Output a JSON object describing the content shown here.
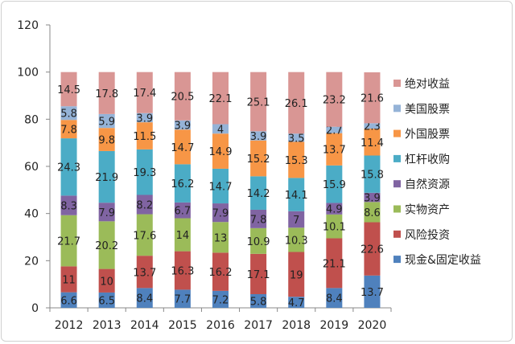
{
  "chart_data": {
    "type": "bar",
    "stacked": true,
    "title": "",
    "xlabel": "",
    "ylabel": "",
    "ylim": [
      0,
      120
    ],
    "yticks": [
      0,
      20,
      40,
      60,
      80,
      100,
      120
    ],
    "grid": false,
    "legend_position": "right",
    "categories": [
      "2012",
      "2013",
      "2014",
      "2015",
      "2016",
      "2017",
      "2018",
      "2019",
      "2020"
    ],
    "series": [
      {
        "name": "现金&固定收益",
        "color": "#4F81BD",
        "values": [
          6.6,
          6.5,
          8.4,
          7.7,
          7.2,
          5.8,
          4.7,
          8.4,
          13.7
        ]
      },
      {
        "name": "风险投资",
        "color": "#C0504D",
        "values": [
          11,
          10,
          13.7,
          16.3,
          16.2,
          17.1,
          19,
          21.1,
          22.6
        ]
      },
      {
        "name": "实物资产",
        "color": "#9BBB59",
        "values": [
          21.7,
          20.2,
          17.6,
          14,
          13,
          10.9,
          10.3,
          10.1,
          8.6
        ]
      },
      {
        "name": "自然资源",
        "color": "#8064A2",
        "values": [
          8.3,
          7.9,
          8.2,
          6.7,
          7.9,
          7.8,
          7,
          4.9,
          3.9
        ]
      },
      {
        "name": "杠杆收购",
        "color": "#4BACC6",
        "values": [
          24.3,
          21.9,
          19.3,
          16.2,
          14.7,
          14.2,
          14.1,
          15.9,
          15.8
        ]
      },
      {
        "name": "外国股票",
        "color": "#F79646",
        "values": [
          7.8,
          9.8,
          11.5,
          14.7,
          14.9,
          15.2,
          15.3,
          13.7,
          11.4
        ]
      },
      {
        "name": "美国股票",
        "color": "#95B3D7",
        "values": [
          5.8,
          5.9,
          3.9,
          3.9,
          4,
          3.9,
          3.5,
          2.7,
          2.3
        ]
      },
      {
        "name": "绝对收益",
        "color": "#D99694",
        "values": [
          14.5,
          17.8,
          17.4,
          20.5,
          22.1,
          25.1,
          26.1,
          23.2,
          21.6
        ]
      }
    ]
  }
}
